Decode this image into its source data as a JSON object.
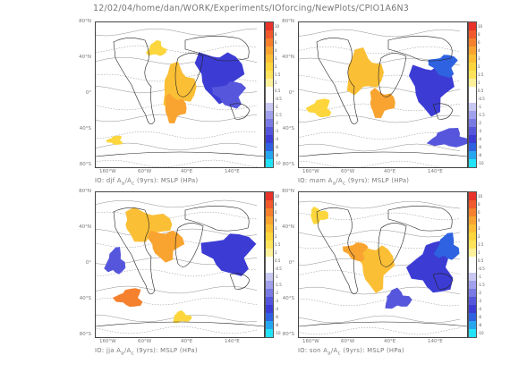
{
  "header": "12/02/04/home/dan/WORK/Experiments/IOforcing/NewPlots/CPIO1A6N3",
  "y_ticks": [
    "80°N",
    "40°N",
    "0°",
    "40°S",
    "80°S"
  ],
  "x_ticks": [
    "160°W",
    "60°W",
    "40°E",
    "140°E"
  ],
  "colorbar": {
    "labels": [
      "10",
      "8",
      "6",
      "4",
      "3",
      "2",
      "1.5",
      "1",
      "0.5",
      "-0.5",
      "-1",
      "-1.5",
      "-2",
      "-3",
      "-4",
      "-6",
      "-8",
      "-10"
    ],
    "colors": [
      "#e8322a",
      "#f05a2c",
      "#f5812e",
      "#f9a431",
      "#fbbf36",
      "#fcd63c",
      "#fde35b",
      "#fdf09a",
      "#ffffff",
      "#ffffff",
      "#c8c8f2",
      "#a0a0ec",
      "#7a7ae4",
      "#5656dc",
      "#3c3cd4",
      "#2e62e0",
      "#27a6f0",
      "#22e2f8"
    ]
  },
  "panels": [
    {
      "caption": "IO: djf A<sub>a</sub>/A<sub>c</sub> (9yrs): MSLP (HPa)"
    },
    {
      "caption": "IO: mam A<sub>a</sub>/A<sub>c</sub> (9yrs): MSLP (HPa)"
    },
    {
      "caption": "IO: jja A<sub>a</sub>/A<sub>c</sub> (9yrs): MSLP (HPa)"
    },
    {
      "caption": "IO: son A<sub>a</sub>/A<sub>c</sub> (9yrs): MSLP (HPa)"
    }
  ],
  "chart_data": {
    "type": "heatmap",
    "description": "Four seasonal anomaly maps of MSLP ratio (djf, mam, jja, son) with diverging colorbar",
    "xlim": [
      "180°W",
      "180°E"
    ],
    "ylim": [
      "80°S",
      "80°N"
    ]
  }
}
